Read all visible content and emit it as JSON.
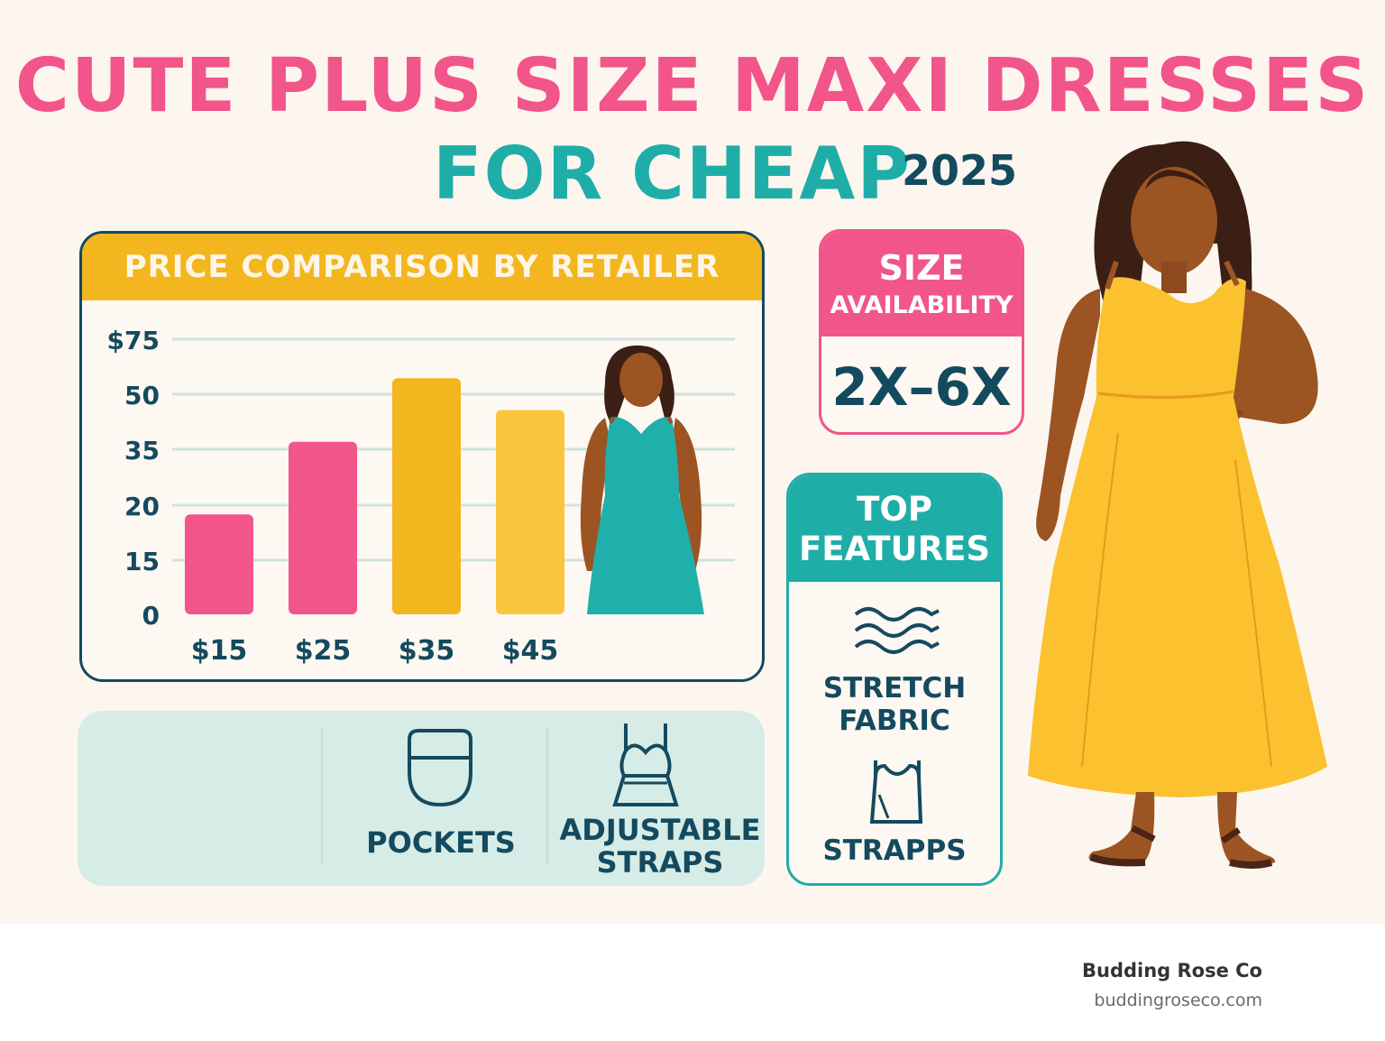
{
  "title": {
    "line1": "CUTE PLUS SIZE MAXI DRESSES",
    "line2": "FOR CHEAP",
    "year": "2025"
  },
  "colors": {
    "pink": "#f2558a",
    "teal": "#1fada8",
    "navy": "#144a5e",
    "gold": "#f4b61e",
    "gold_light": "#f9c53d",
    "strip_bg": "#d6ece7",
    "cream": "#fcf6ef"
  },
  "chart_data": {
    "type": "bar",
    "title": "PRICE COMPARISON BY RETAILER",
    "categories": [
      "$15",
      "$25",
      "$35",
      "$45"
    ],
    "values": [
      22,
      38,
      52,
      45
    ],
    "y_tick_labels": [
      "$75",
      "50",
      "35",
      "20",
      "15",
      "0"
    ],
    "bar_colors": [
      "#f2558a",
      "#f2558a",
      "#f4b61e",
      "#f9c53d"
    ],
    "grid": true
  },
  "size_availability": {
    "title": "SIZE",
    "subtitle": "AVAILABILITY",
    "value": "2X–6X"
  },
  "top_features": {
    "title_line1": "TOP",
    "title_line2": "FEATURES",
    "items": [
      {
        "label_line1": "STRETCH",
        "label_line2": "FABRIC",
        "icon": "stretch-wave-icon"
      },
      {
        "label_line1": "STRAPPS",
        "label_line2": "",
        "icon": "strap-fabric-icon"
      }
    ]
  },
  "features_strip": {
    "items": [
      {
        "label_line1": "POCKETS",
        "label_line2": "",
        "icon": "pocket-icon"
      },
      {
        "label_line1": "ADJUSTABLE",
        "label_line2": "STRAPS",
        "icon": "camisole-icon"
      }
    ]
  },
  "figures": {
    "main": {
      "dress_color": "#fbc12e",
      "skin": "#9c5423",
      "hair": "#3b1f14"
    },
    "chart": {
      "dress_color": "#1fb0ac",
      "skin": "#9c5423",
      "hair": "#3b1f14"
    }
  },
  "brand": {
    "name": "Budding Rose Co",
    "url": "buddingroseco.com"
  }
}
